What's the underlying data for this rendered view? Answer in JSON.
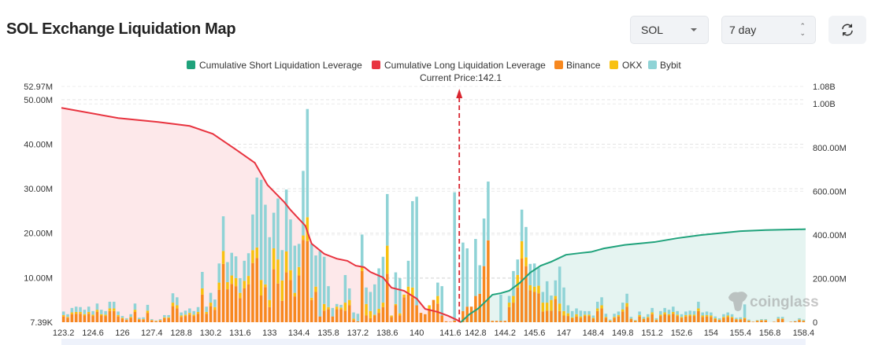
{
  "header": {
    "title": "SOL Exchange Liquidation Map",
    "coin_select": "SOL",
    "range_select": "7 day",
    "refresh_icon": "refresh-icon"
  },
  "colors": {
    "short": "#1fa27b",
    "long": "#e8333f",
    "binance": "#f7881f",
    "okx": "#f8c110",
    "bybit": "#8fd3d6",
    "short_area": "#e5f4f1",
    "long_area": "#fde8ea"
  },
  "watermark": "coinglass",
  "chart_data": {
    "type": "bar",
    "stacked": true,
    "legend": [
      "Cumulative Short Liquidation Leverage",
      "Cumulative Long Liquidation Leverage",
      "Binance",
      "OKX",
      "Bybit"
    ],
    "legend_position": "top",
    "current_price_label": "Current Price:142.1",
    "current_price": 142.1,
    "grid": true,
    "y_left": {
      "min": 0,
      "max": 52970000,
      "min_label": "7.39K",
      "max_label": "52.97M",
      "ticks": [
        10000000,
        20000000,
        30000000,
        40000000,
        50000000
      ],
      "tick_labels": [
        "10.00M",
        "20.00M",
        "30.00M",
        "40.00M",
        "50.00M"
      ]
    },
    "y_right": {
      "min": 0,
      "max": 1080000000,
      "max_label": "1.08B",
      "ticks": [
        0,
        200000000,
        400000000,
        600000000,
        800000000,
        1000000000
      ],
      "tick_labels": [
        "0",
        "200.00M",
        "400.00M",
        "600.00M",
        "800.00M",
        "1.00B"
      ]
    },
    "x_tick_labels": [
      "123.2",
      "124.6",
      "126",
      "127.4",
      "128.8",
      "130.2",
      "131.6",
      "133",
      "134.4",
      "135.8",
      "137.2",
      "138.6",
      "140",
      "141.6",
      "142.8",
      "144.2",
      "145.6",
      "147",
      "148.4",
      "149.8",
      "151.2",
      "152.6",
      "154",
      "155.4",
      "156.8",
      "158.4"
    ],
    "x_range": [
      123.2,
      158.4
    ],
    "bar_unit": "M",
    "bars_binance_okx_bybit": [
      [
        1.3,
        0.3,
        0.8
      ],
      [
        1.0,
        0.2,
        0.6
      ],
      [
        1.8,
        0.4,
        1.0
      ],
      [
        1.9,
        0.4,
        1.2
      ],
      [
        1.9,
        0.4,
        1.1
      ],
      [
        1.5,
        0.3,
        1.0
      ],
      [
        1.9,
        0.4,
        1.2
      ],
      [
        1.4,
        0.3,
        0.8
      ],
      [
        2.3,
        0.5,
        1.4
      ],
      [
        1.5,
        0.3,
        1.0
      ],
      [
        1.4,
        0.3,
        0.8
      ],
      [
        2.5,
        0.6,
        1.5
      ],
      [
        2.5,
        0.6,
        1.5
      ],
      [
        1.3,
        0.3,
        0.8
      ],
      [
        0.8,
        0.2,
        0.4
      ],
      [
        0.5,
        0.1,
        0.3
      ],
      [
        1.0,
        0.2,
        0.6
      ],
      [
        2.3,
        0.5,
        1.4
      ],
      [
        0.6,
        0.1,
        0.3
      ],
      [
        0.6,
        0.1,
        0.4
      ],
      [
        2.1,
        0.5,
        1.3
      ],
      [
        0.4,
        0.1,
        0.2
      ],
      [
        0.2,
        0.1,
        0.1
      ],
      [
        0.4,
        0.1,
        0.2
      ],
      [
        0.9,
        0.2,
        0.5
      ],
      [
        0.9,
        0.2,
        0.5
      ],
      [
        3.6,
        0.8,
        2.1
      ],
      [
        3.1,
        0.7,
        1.8
      ],
      [
        1.2,
        0.3,
        0.7
      ],
      [
        1.4,
        0.3,
        0.9
      ],
      [
        1.7,
        0.4,
        1.0
      ],
      [
        1.4,
        0.3,
        0.8
      ],
      [
        1.9,
        0.4,
        1.1
      ],
      [
        6.2,
        1.4,
        3.7
      ],
      [
        1.9,
        0.4,
        1.2
      ],
      [
        3.6,
        0.8,
        2.2
      ],
      [
        2.8,
        0.6,
        1.7
      ],
      [
        7.3,
        1.6,
        4.3
      ],
      [
        13.1,
        2.9,
        7.8
      ],
      [
        7.4,
        1.6,
        4.5
      ],
      [
        8.6,
        1.9,
        5.1
      ],
      [
        8.1,
        1.8,
        4.9
      ],
      [
        5.4,
        1.2,
        3.3
      ],
      [
        7.6,
        1.7,
        4.5
      ],
      [
        8.5,
        1.9,
        5.1
      ],
      [
        13.3,
        2.9,
        8.0
      ],
      [
        14.4,
        2.4,
        15.7
      ],
      [
        6.0,
        3.5,
        22.5
      ],
      [
        7.9,
        0.6,
        17.9
      ],
      [
        3.4,
        1.6,
        14.1
      ],
      [
        11.9,
        4.7,
        8.0
      ],
      [
        8.7,
        5.4,
        13.7
      ],
      [
        4.8,
        4.6,
        6.8
      ],
      [
        11.2,
        4.7,
        13.9
      ],
      [
        9.5,
        2.2,
        11.4
      ],
      [
        5.8,
        0.8,
        10.6
      ],
      [
        10.5,
        1.9,
        5.2
      ],
      [
        18.5,
        1.0,
        14.5
      ],
      [
        18.2,
        5.4,
        24.3
      ],
      [
        5.0,
        0.5,
        12.1
      ],
      [
        6.8,
        1.2,
        7.0
      ],
      [
        1.3,
        0,
        14.7
      ],
      [
        2.6,
        1.5,
        10.6
      ],
      [
        2.9,
        0.5,
        4.7
      ],
      [
        1.3,
        0,
        1.9
      ],
      [
        2.9,
        0.6,
        0.6
      ],
      [
        2.9,
        0.4,
        0.6
      ],
      [
        2.6,
        1.8,
        6.2
      ],
      [
        3.8,
        1.2,
        2.6
      ],
      [
        0.5,
        0.3,
        1.4
      ],
      [
        0.2,
        0,
        1.7
      ],
      [
        11.5,
        0.9,
        7.3
      ],
      [
        1.5,
        2.6,
        3.7
      ],
      [
        0.9,
        1.6,
        4.3
      ],
      [
        1.5,
        0.2,
        6.8
      ],
      [
        2.1,
        0.9,
        9.1
      ],
      [
        3.4,
        1.0,
        10.3
      ],
      [
        10.9,
        6.3,
        11.6
      ],
      [
        1.2,
        0.3,
        0
      ],
      [
        3.8,
        0.3,
        7.1
      ],
      [
        1.5,
        0.5,
        7.9
      ],
      [
        5.6,
        0.6,
        0
      ],
      [
        6.2,
        1.8,
        5.8
      ],
      [
        5.6,
        2.2,
        19.4
      ],
      [
        3.8,
        0,
        24.4
      ],
      [
        2.1,
        0,
        0
      ],
      [
        1.8,
        0,
        0
      ],
      [
        3.0,
        0.8,
        0
      ],
      [
        5.0,
        0,
        0
      ],
      [
        4.2,
        1.7,
        3.0
      ],
      [
        1.5,
        0,
        6.6
      ],
      [
        0.2,
        0,
        0
      ],
      [
        0.1,
        0,
        0
      ],
      [
        0.4,
        0,
        28.8
      ],
      [
        0,
        0,
        0
      ],
      [
        2.5,
        0,
        15.4
      ],
      [
        3.5,
        0,
        13.1
      ],
      [
        3.5,
        0,
        0
      ],
      [
        5.9,
        0,
        12.8
      ],
      [
        6.4,
        0,
        6.4
      ],
      [
        12.6,
        0,
        10.7
      ],
      [
        18.4,
        0,
        13.2
      ],
      [
        0.3,
        0,
        0
      ],
      [
        0.3,
        0,
        0
      ],
      [
        0.3,
        0,
        5.9
      ],
      [
        0.3,
        0,
        0
      ],
      [
        3.4,
        1.0,
        1.5
      ],
      [
        4.4,
        1.5,
        5.6
      ],
      [
        7.8,
        2.8,
        3.5
      ],
      [
        14.3,
        3.9,
        7.1
      ],
      [
        12.6,
        2.0,
        6.8
      ],
      [
        7.2,
        1.1,
        4.8
      ],
      [
        6.8,
        1.2,
        5.2
      ],
      [
        6.5,
        1.7,
        4.0
      ],
      [
        2.4,
        2.0,
        2.4
      ],
      [
        2.6,
        1.8,
        4.8
      ],
      [
        2.6,
        2.4,
        1.0
      ],
      [
        5.2,
        0.7,
        3.5
      ],
      [
        2.5,
        1.7,
        8.3
      ],
      [
        1.5,
        1.0,
        5.3
      ],
      [
        1.4,
        0.6,
        1.8
      ],
      [
        0.9,
        0.2,
        1.4
      ],
      [
        1.3,
        0.5,
        1.3
      ],
      [
        1.0,
        0.3,
        1.3
      ],
      [
        1.4,
        0.3,
        0.8
      ],
      [
        1.4,
        0.3,
        0.8
      ],
      [
        0.8,
        0.2,
        0.5
      ],
      [
        2.5,
        0.6,
        1.5
      ],
      [
        3.1,
        0.7,
        1.8
      ],
      [
        1.0,
        0.2,
        0.7
      ],
      [
        0.3,
        0.1,
        0.2
      ],
      [
        1.0,
        0.2,
        0.7
      ],
      [
        1.3,
        0.3,
        0.8
      ],
      [
        2.4,
        0.5,
        1.5
      ],
      [
        3.5,
        0.8,
        2.1
      ],
      [
        0.7,
        0.1,
        0.4
      ],
      [
        0.3,
        0.1,
        0.1
      ],
      [
        1.3,
        0.3,
        0.8
      ],
      [
        0.7,
        0.1,
        0.4
      ],
      [
        1.0,
        0.2,
        0.6
      ],
      [
        1.8,
        0.4,
        1.0
      ],
      [
        0.5,
        0.1,
        0.3
      ],
      [
        1.4,
        0.3,
        0.8
      ],
      [
        1.8,
        0.4,
        1.0
      ],
      [
        1.5,
        0.3,
        1.0
      ],
      [
        1.9,
        0.4,
        1.2
      ],
      [
        1.4,
        0.3,
        0.8
      ],
      [
        1.0,
        0.2,
        0.6
      ],
      [
        1.3,
        0.3,
        0.8
      ],
      [
        1.4,
        0.3,
        0.9
      ],
      [
        1.4,
        0.3,
        0.8
      ],
      [
        2.5,
        0.6,
        1.5
      ],
      [
        1.2,
        0.3,
        0.7
      ],
      [
        1.3,
        0.3,
        0.8
      ],
      [
        1.2,
        0.3,
        0.7
      ],
      [
        0.7,
        0.2,
        0.4
      ],
      [
        0.5,
        0.1,
        0.3
      ],
      [
        1.0,
        0.2,
        0.6
      ],
      [
        1.2,
        0.3,
        0.7
      ],
      [
        1.0,
        0.2,
        0.6
      ],
      [
        0.6,
        0.1,
        0.3
      ],
      [
        0.6,
        0.1,
        0.4
      ],
      [
        0.8,
        0.2,
        3.0
      ],
      [
        0.3,
        0.1,
        0.2
      ],
      [
        0.1,
        0,
        0
      ],
      [
        0.3,
        0.1,
        0.1
      ],
      [
        0.4,
        0.1,
        0.2
      ],
      [
        0.4,
        0.1,
        0.2
      ],
      [
        0,
        0,
        0
      ],
      [
        0.1,
        0,
        0
      ],
      [
        0.7,
        0.1,
        0.4
      ],
      [
        0.7,
        0.1,
        0.4
      ],
      [
        0,
        0,
        0
      ],
      [
        0.1,
        0,
        0
      ],
      [
        0.2,
        0,
        0.1
      ],
      [
        0.5,
        0.1,
        0.3
      ],
      [
        0.3,
        0.1,
        0.2
      ]
    ],
    "bar_price_start": 123.2,
    "bar_price_step": 0.2,
    "line_unit": "B",
    "cumulative_long": [
      [
        123.2,
        0.982
      ],
      [
        125.8,
        0.935
      ],
      [
        127.7,
        0.917
      ],
      [
        129.2,
        0.899
      ],
      [
        130.3,
        0.863
      ],
      [
        131.4,
        0.791
      ],
      [
        132.3,
        0.73
      ],
      [
        132.9,
        0.629
      ],
      [
        133.7,
        0.55
      ],
      [
        134.0,
        0.514
      ],
      [
        134.7,
        0.442
      ],
      [
        135.0,
        0.36
      ],
      [
        135.6,
        0.313
      ],
      [
        136.2,
        0.291
      ],
      [
        136.7,
        0.281
      ],
      [
        137.1,
        0.259
      ],
      [
        137.5,
        0.252
      ],
      [
        137.8,
        0.23
      ],
      [
        138.4,
        0.205
      ],
      [
        138.8,
        0.158
      ],
      [
        139.4,
        0.144
      ],
      [
        140.0,
        0.108
      ],
      [
        140.4,
        0.061
      ],
      [
        141.0,
        0.047
      ],
      [
        141.5,
        0.029
      ],
      [
        141.9,
        0.011
      ],
      [
        142.1,
        0
      ]
    ],
    "cumulative_short": [
      [
        142.1,
        0
      ],
      [
        142.5,
        0.036
      ],
      [
        142.9,
        0.061
      ],
      [
        143.3,
        0.097
      ],
      [
        143.6,
        0.126
      ],
      [
        144.0,
        0.133
      ],
      [
        144.4,
        0.144
      ],
      [
        144.9,
        0.18
      ],
      [
        145.4,
        0.227
      ],
      [
        145.9,
        0.259
      ],
      [
        146.4,
        0.277
      ],
      [
        147.1,
        0.309
      ],
      [
        147.8,
        0.317
      ],
      [
        148.3,
        0.322
      ],
      [
        148.9,
        0.338
      ],
      [
        149.9,
        0.354
      ],
      [
        151.3,
        0.367
      ],
      [
        152.4,
        0.385
      ],
      [
        153.5,
        0.399
      ],
      [
        155.4,
        0.417
      ],
      [
        156.6,
        0.422
      ],
      [
        158.4,
        0.426
      ]
    ]
  }
}
